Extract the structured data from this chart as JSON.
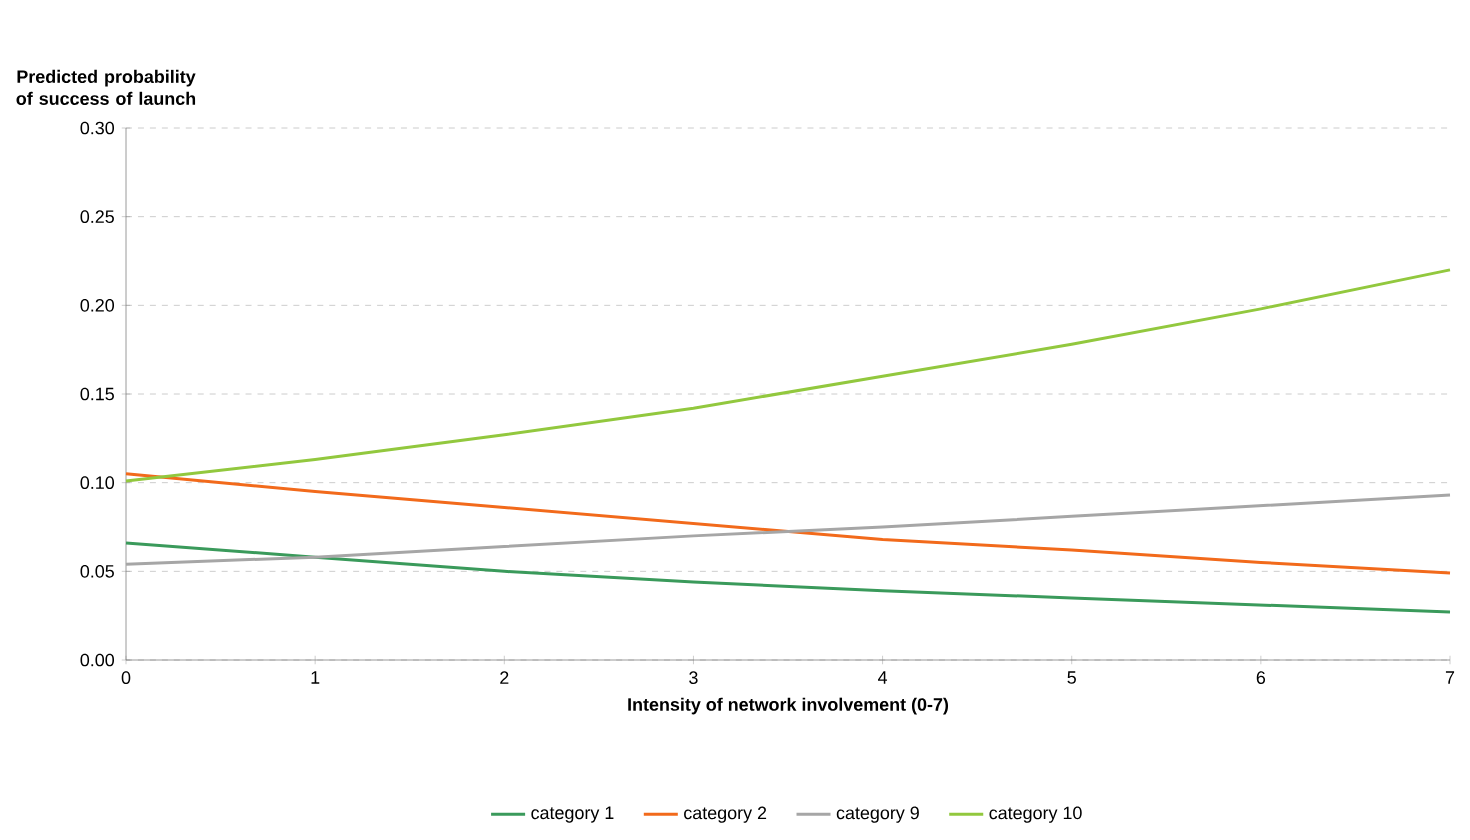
{
  "chart_data": {
    "type": "line",
    "ylabel": "Predicted probability of success of launch",
    "xlabel": "Intensity of network involvement (0-7)",
    "x": [
      0,
      1,
      2,
      3,
      4,
      5,
      6,
      7
    ],
    "series": [
      {
        "name": "category 1",
        "color": "#3a9a5b",
        "values": [
          0.066,
          0.058,
          0.05,
          0.044,
          0.039,
          0.035,
          0.031,
          0.027
        ]
      },
      {
        "name": "category 2",
        "color": "#f26a1b",
        "values": [
          0.105,
          0.095,
          0.086,
          0.077,
          0.068,
          0.062,
          0.055,
          0.049
        ]
      },
      {
        "name": "category 9",
        "color": "#a6a6a6",
        "values": [
          0.054,
          0.058,
          0.064,
          0.07,
          0.075,
          0.081,
          0.087,
          0.093
        ]
      },
      {
        "name": "category 10",
        "color": "#92c83e",
        "values": [
          0.101,
          0.113,
          0.127,
          0.142,
          0.16,
          0.178,
          0.198,
          0.22
        ]
      }
    ],
    "xlim": [
      0,
      7
    ],
    "xticks": [
      0,
      1,
      2,
      3,
      4,
      5,
      6,
      7
    ],
    "ylim": [
      0,
      0.3
    ],
    "yticks": [
      {
        "value": 0,
        "label": "0.00"
      },
      {
        "value": 0.05,
        "label": "0.05"
      },
      {
        "value": 0.1,
        "label": "0.10"
      },
      {
        "value": 0.15,
        "label": "0.15"
      },
      {
        "value": 0.2,
        "label": "0.20"
      },
      {
        "value": 0.25,
        "label": "0.25"
      },
      {
        "value": 0.3,
        "label": "0.30"
      }
    ],
    "grid": "y",
    "legend": "bottom",
    "marker": "none",
    "line_style": "solid"
  }
}
